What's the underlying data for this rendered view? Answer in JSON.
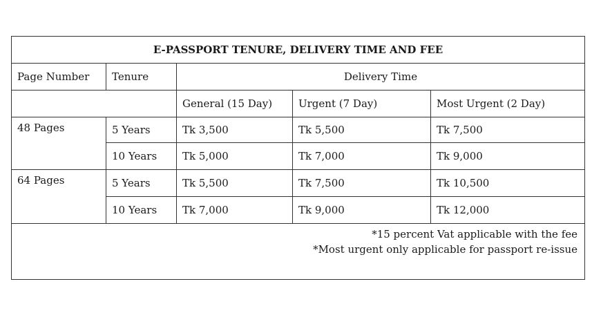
{
  "title": "E-PASSPORT TENURE, DELIVERY TIME AND FEE",
  "headers": {
    "page_number": "Page Number",
    "tenure": "Tenure",
    "delivery_time": "Delivery Time"
  },
  "delivery_types": [
    "General (15 Day)",
    "Urgent (7 Day)",
    "Most Urgent (2 Day)"
  ],
  "groups": [
    {
      "pages": "48 Pages",
      "rows": [
        {
          "tenure": "5 Years",
          "fees": [
            "Tk 3,500",
            "Tk 5,500",
            "Tk 7,500"
          ]
        },
        {
          "tenure": "10 Years",
          "fees": [
            "Tk 5,000",
            "Tk 7,000",
            "Tk 9,000"
          ]
        }
      ]
    },
    {
      "pages": "64 Pages",
      "rows": [
        {
          "tenure": "5 Years",
          "fees": [
            "Tk 5,500",
            "Tk 7,500",
            "Tk 10,500"
          ]
        },
        {
          "tenure": "10 Years",
          "fees": [
            "Tk 7,000",
            "Tk 9,000",
            "Tk 12,000"
          ]
        }
      ]
    }
  ],
  "notes": [
    "*15 percent Vat applicable with the fee",
    "*Most urgent only applicable for passport re-issue"
  ]
}
